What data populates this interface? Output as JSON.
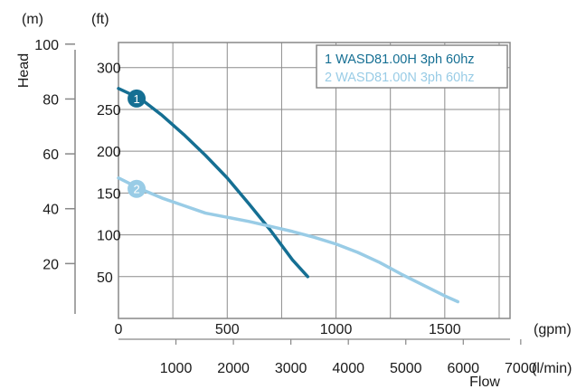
{
  "chart_data": {
    "type": "line",
    "xlabel": "Flow",
    "ylabel": "Head",
    "x_unit_primary": "(gpm)",
    "x_unit_secondary": "(l/min)",
    "y_unit_left": "(m)",
    "y_unit_right": "(ft)",
    "xlim": [
      0,
      1800
    ],
    "ylim_ft": [
      0,
      330
    ],
    "x_ticks_gpm": [
      0,
      500,
      1000,
      1500
    ],
    "x_ticks_lmin": [
      1000,
      2000,
      3000,
      4000,
      5000,
      6000,
      7000
    ],
    "y_ticks_ft": [
      50,
      100,
      150,
      200,
      250,
      300
    ],
    "y_ticks_m": [
      20,
      40,
      60,
      80,
      100
    ],
    "grid": true,
    "legend_position": "top-right",
    "colors": {
      "series1": "#156f93",
      "series2": "#99cce6",
      "frame": "#888888"
    },
    "series": [
      {
        "name": "1 WASD81.00H 3ph 60hz",
        "marker": "1",
        "x": [
          0,
          100,
          200,
          300,
          400,
          500,
          600,
          700,
          800,
          870
        ],
        "y": [
          275,
          263,
          243,
          220,
          195,
          168,
          137,
          105,
          70,
          50
        ]
      },
      {
        "name": "2 WASD81.00N 3ph 60hz",
        "marker": "2",
        "x": [
          0,
          100,
          200,
          300,
          400,
          500,
          600,
          700,
          800,
          900,
          1000,
          1100,
          1200,
          1300,
          1400,
          1500,
          1560
        ],
        "y": [
          168,
          155,
          144,
          135,
          126,
          121,
          116,
          110,
          104,
          97,
          89,
          79,
          67,
          53,
          40,
          27,
          20
        ]
      }
    ]
  }
}
